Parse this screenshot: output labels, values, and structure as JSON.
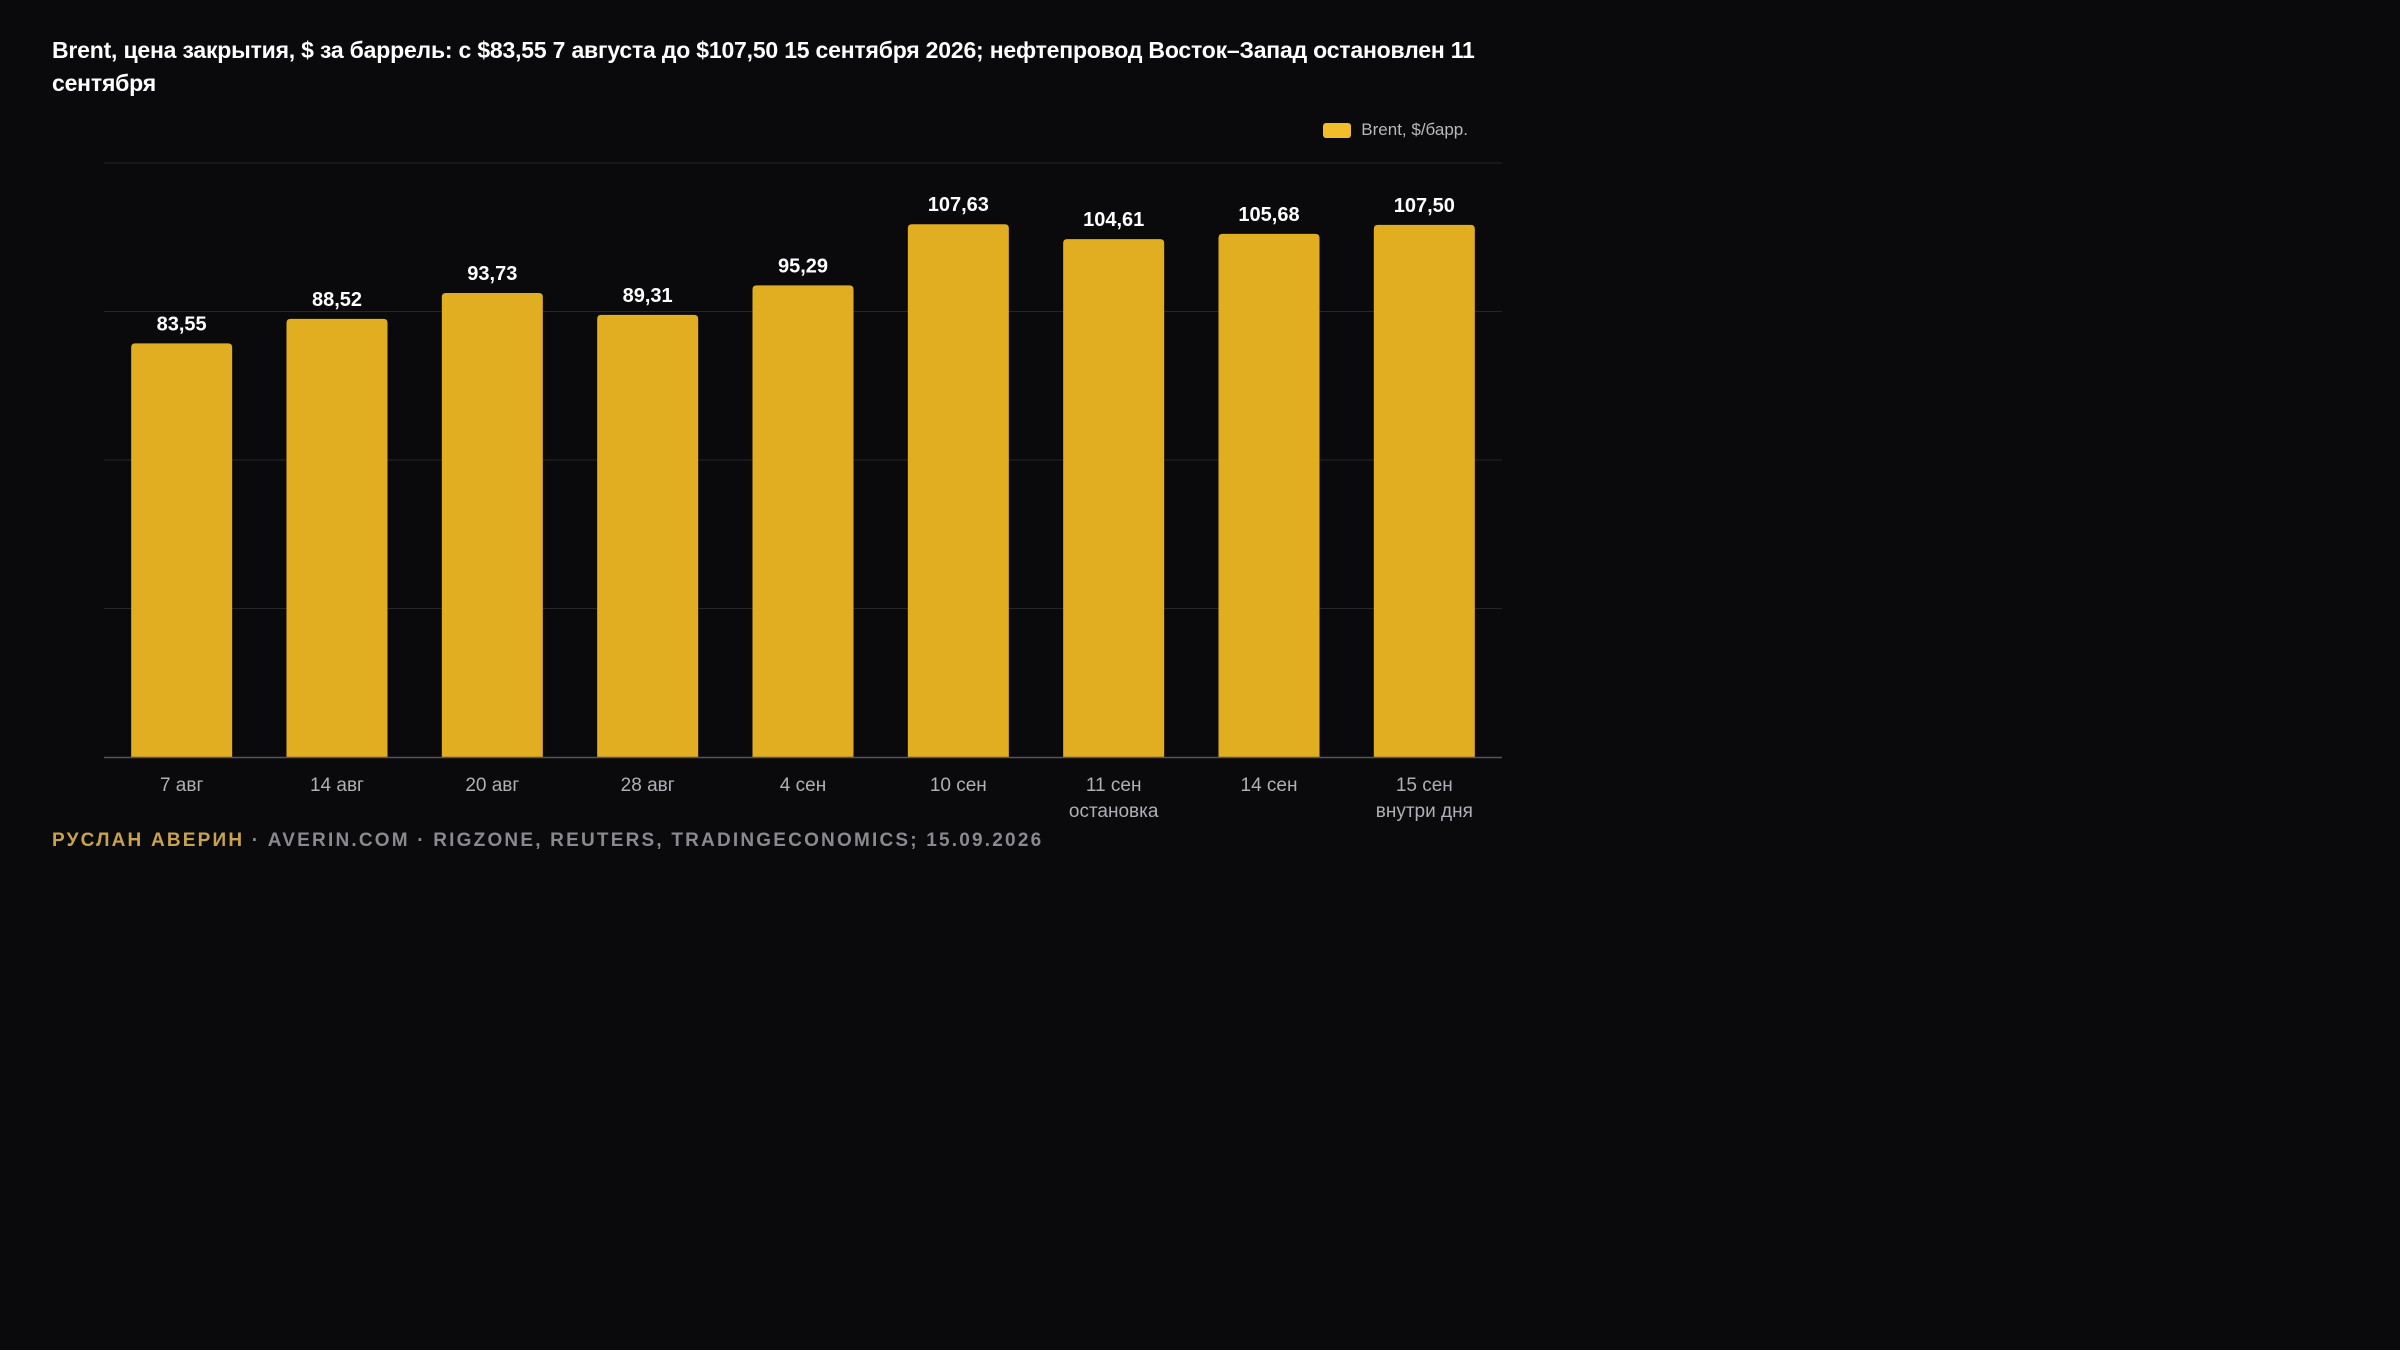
{
  "title": "Brent, цена закрытия, $ за баррель: с $83,55 7 августа до $107,50 15 сентября 2026; нефтепровод Восток–Запад остановлен 11 сентября",
  "legend": {
    "label": "Brent, $/барр."
  },
  "footer": {
    "author": "РУСЛАН АВЕРИН",
    "rest": " · AVERIN.COM · RIGZONE, REUTERS, TRADINGECONOMICS; 15.09.2026"
  },
  "colors": {
    "bar": "#e1ad21",
    "legend_swatch": "#f2bd2a",
    "author": "#c9a34b",
    "grid": "#26262b",
    "axis": "#55555a"
  },
  "chart_data": {
    "type": "bar",
    "categories": [
      [
        "7 авг"
      ],
      [
        "14 авг"
      ],
      [
        "20 авг"
      ],
      [
        "28 авг"
      ],
      [
        "4 сен"
      ],
      [
        "10 сен"
      ],
      [
        "11 сен",
        "остановка"
      ],
      [
        "14 сен"
      ],
      [
        "15 сен",
        "внутри дня"
      ]
    ],
    "series": [
      {
        "name": "Brent, $/барр.",
        "values": [
          83.55,
          88.52,
          93.73,
          89.31,
          95.29,
          107.63,
          104.61,
          105.68,
          107.5
        ],
        "labels": [
          "83,55",
          "88,52",
          "93,73",
          "89,31",
          "95,29",
          "107,63",
          "104,61",
          "105,68",
          "107,50"
        ]
      }
    ],
    "ylim": [
      0,
      120
    ],
    "grid": true,
    "gridlines": [
      0,
      30,
      60,
      90,
      120
    ],
    "legend_position": "top-right"
  }
}
